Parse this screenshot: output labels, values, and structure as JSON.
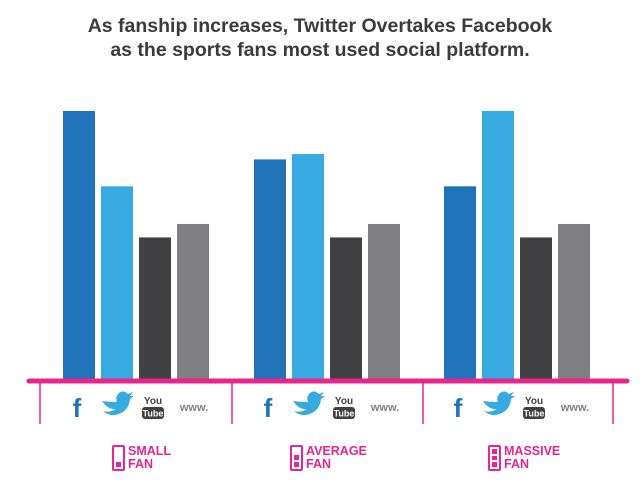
{
  "title": {
    "line1": "As fanship increases, Twitter Overtakes Facebook",
    "line2": "as the sports fans most used social platform."
  },
  "chart_data": {
    "type": "bar",
    "categories": [
      "SMALL FAN",
      "AVERAGE FAN",
      "MASSIVE FAN"
    ],
    "series": [
      {
        "name": "Facebook",
        "icon": "facebook-icon",
        "color": "#2173b9",
        "values": [
          100,
          82,
          72
        ]
      },
      {
        "name": "Twitter",
        "icon": "twitter-icon",
        "color": "#37abe1",
        "values": [
          72,
          84,
          100
        ]
      },
      {
        "name": "YouTube",
        "icon": "youtube-icon",
        "color": "#414042",
        "values": [
          53,
          53,
          53
        ]
      },
      {
        "name": "www.",
        "icon": "web-icon",
        "color": "#808082",
        "values": [
          58,
          58,
          58
        ]
      }
    ],
    "ylim": [
      0,
      100
    ],
    "grid": false,
    "legend": "bottom",
    "axis_color": "#e8258e"
  },
  "groups": [
    {
      "label_line1": "SMALL",
      "label_line2": "FAN",
      "level": 1
    },
    {
      "label_line1": "AVERAGE",
      "label_line2": "FAN",
      "level": 2
    },
    {
      "label_line1": "MASSIVE",
      "label_line2": "FAN",
      "level": 3
    }
  ],
  "icons": {
    "facebook": "f",
    "twitter": "🐦",
    "youtube_top": "You",
    "youtube_bottom": "Tube",
    "web": "www."
  }
}
